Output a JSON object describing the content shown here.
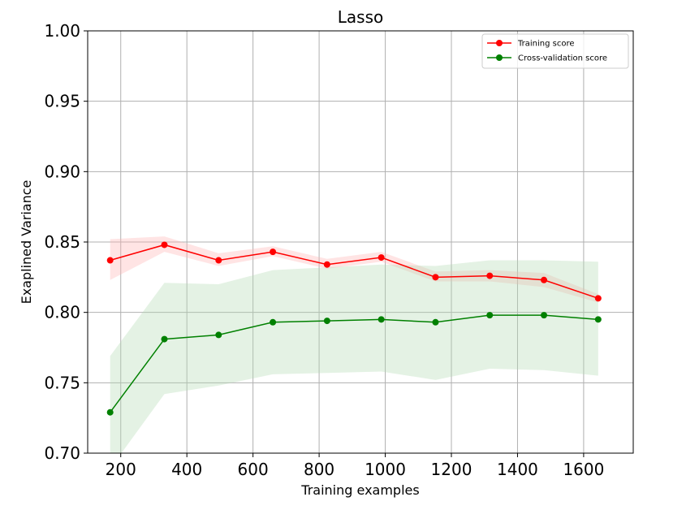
{
  "chart_data": {
    "type": "line",
    "title": "Lasso",
    "xlabel": "Training examples",
    "ylabel": "Exaplined Variance",
    "xlim": [
      100,
      1750
    ],
    "ylim": [
      0.7,
      1.0
    ],
    "xticks": [
      200,
      400,
      600,
      800,
      1000,
      1200,
      1400,
      1600
    ],
    "yticks": [
      0.7,
      0.75,
      0.8,
      0.85,
      0.9,
      0.95,
      1.0
    ],
    "ytick_labels": [
      "0.70",
      "0.75",
      "0.80",
      "0.85",
      "0.90",
      "0.95",
      "1.00"
    ],
    "grid": true,
    "legend_position": "top-right",
    "x": [
      168,
      332,
      496,
      660,
      824,
      988,
      1152,
      1316,
      1480,
      1644
    ],
    "series": [
      {
        "name": "Training score",
        "color": "#ff0000",
        "band_color": "#ffb3b3",
        "values": [
          0.837,
          0.848,
          0.837,
          0.843,
          0.834,
          0.839,
          0.825,
          0.826,
          0.823,
          0.81
        ],
        "lower": [
          0.823,
          0.843,
          0.833,
          0.84,
          0.831,
          0.836,
          0.822,
          0.822,
          0.818,
          0.807
        ],
        "upper": [
          0.852,
          0.854,
          0.842,
          0.847,
          0.838,
          0.843,
          0.829,
          0.83,
          0.828,
          0.813
        ]
      },
      {
        "name": "Cross-validation score",
        "color": "#008000",
        "band_color": "#b3dab3",
        "values": [
          0.729,
          0.781,
          0.784,
          0.793,
          0.794,
          0.795,
          0.793,
          0.798,
          0.798,
          0.795
        ],
        "lower": [
          0.689,
          0.742,
          0.748,
          0.756,
          0.757,
          0.758,
          0.752,
          0.76,
          0.759,
          0.755
        ],
        "upper": [
          0.769,
          0.821,
          0.82,
          0.83,
          0.832,
          0.834,
          0.833,
          0.837,
          0.837,
          0.836
        ]
      }
    ]
  }
}
